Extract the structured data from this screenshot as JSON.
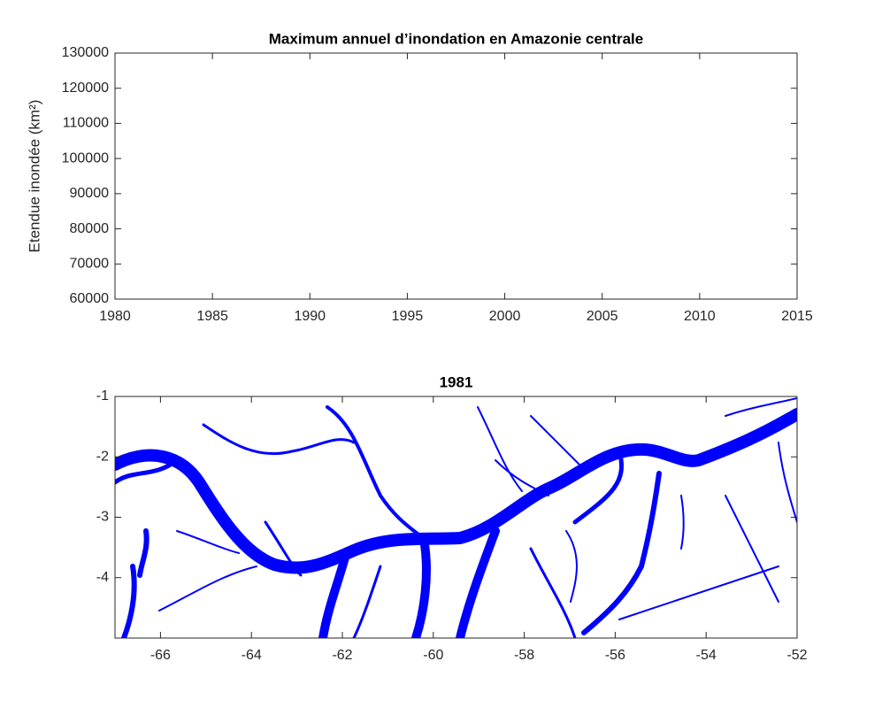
{
  "chart_data": [
    {
      "type": "line",
      "title": "Maximum annuel d’inondation en Amazonie centrale",
      "ylabel": "Etendue inondée (km²)",
      "xlim": [
        1980,
        2015
      ],
      "xticks": [
        1980,
        1985,
        1990,
        1995,
        2000,
        2005,
        2010,
        2015
      ],
      "ylim": [
        60000,
        130000
      ],
      "yticks": [
        60000,
        70000,
        80000,
        90000,
        100000,
        110000,
        120000,
        130000
      ]
    },
    {
      "type": "map",
      "title": "1981",
      "color": "#0000ff",
      "xlim": [
        -67,
        -52
      ],
      "xticks": [
        -66,
        -64,
        -62,
        -60,
        -58,
        -56,
        -54,
        -52
      ],
      "ylim": [
        -5,
        -1
      ],
      "yticks": [
        -4,
        -3,
        -2,
        -1
      ]
    }
  ]
}
